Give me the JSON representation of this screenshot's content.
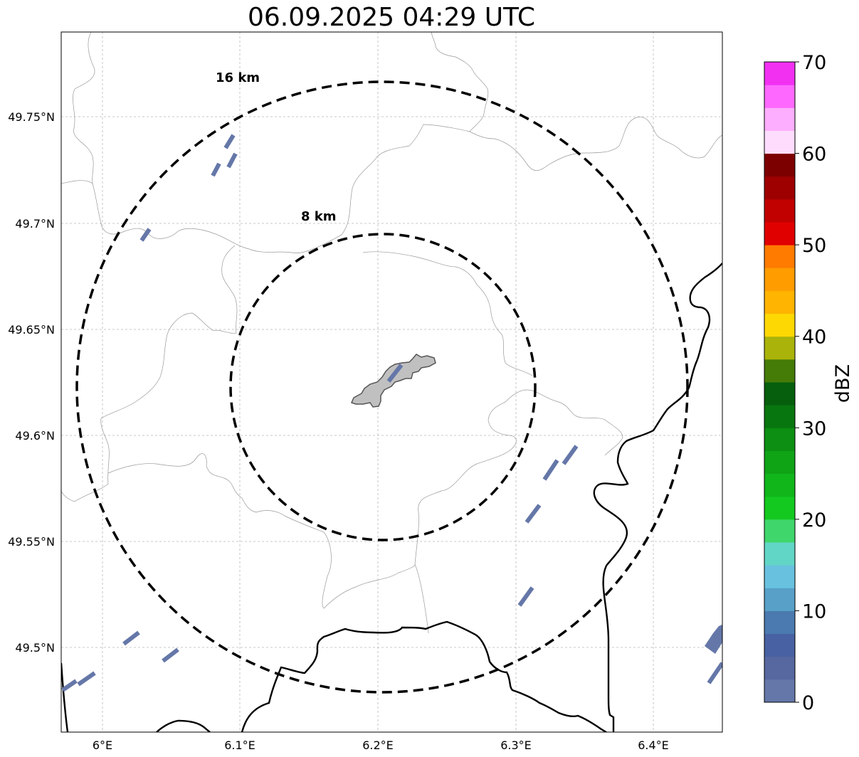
{
  "title": "06.09.2025 04:29 UTC",
  "map": {
    "lon_ticks": [
      "6°E",
      "6.1°E",
      "6.2°E",
      "6.3°E",
      "6.4°E"
    ],
    "lat_ticks": [
      "49.75°N",
      "49.7°N",
      "49.65°N",
      "49.6°N",
      "49.55°N",
      "49.5°N"
    ],
    "range_rings": [
      "16 km",
      "8 km"
    ],
    "gridlines": true
  },
  "colorbar": {
    "label": "dBZ",
    "ticks": [
      "0",
      "10",
      "20",
      "30",
      "40",
      "50",
      "60",
      "70"
    ],
    "colors": [
      "#6577a8",
      "#56689f",
      "#4761a2",
      "#4a7aaf",
      "#58a0c8",
      "#68c1de",
      "#62d6c6",
      "#3fd66c",
      "#13c91f",
      "#10b61a",
      "#0fa316",
      "#0c8f12",
      "#08760f",
      "#055f0c",
      "#457b07",
      "#aab30a",
      "#fed803",
      "#feb400",
      "#fe9c00",
      "#fe7b00",
      "#e10000",
      "#c10000",
      "#9e0000",
      "#7d0000",
      "#fedcfe",
      "#feaefe",
      "#fe68fe",
      "#f230f2"
    ]
  }
}
